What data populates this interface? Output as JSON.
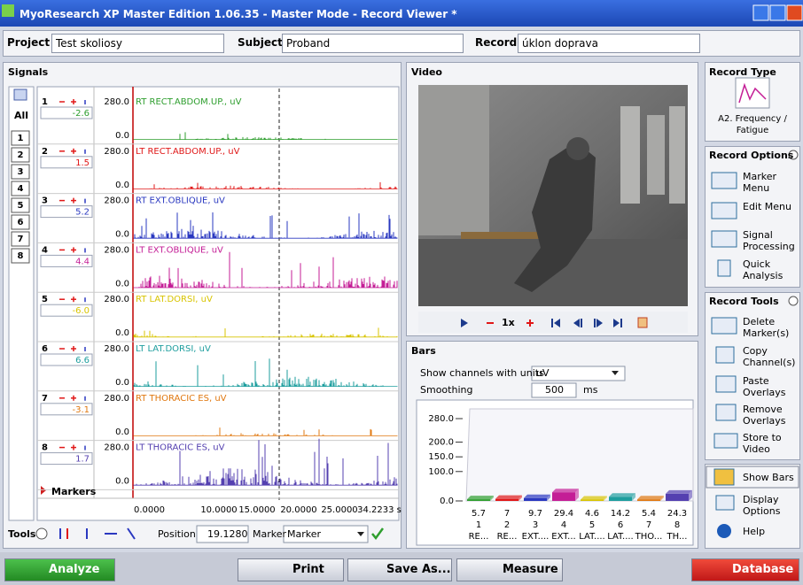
{
  "window": {
    "title": "MyoResearch XP Master Edition 1.06.35 - Master Mode - Record Viewer *"
  },
  "header": {
    "project_label": "Project",
    "project": "Test skoliosy",
    "subject_label": "Subject",
    "subject": "Proband",
    "record_label": "Record",
    "record": "úklon doprava"
  },
  "signals": {
    "title": "Signals",
    "all": "All",
    "channel_buttons": [
      "1",
      "2",
      "3",
      "4",
      "5",
      "6",
      "7",
      "8"
    ],
    "channels": [
      {
        "number": "1",
        "value": "-2.6",
        "max": "280.0",
        "min": "0.0",
        "label": "RT RECT.ABDOM.UP., uV",
        "color": "#2e9e2e"
      },
      {
        "number": "2",
        "value": "1.5",
        "max": "280.0",
        "min": "0.0",
        "label": "LT RECT.ABDOM.UP., uV",
        "color": "#e01818"
      },
      {
        "number": "3",
        "value": "5.2",
        "max": "280.0",
        "min": "0.0",
        "label": "RT EXT.OBLIQUE, uV",
        "color": "#2a38c0"
      },
      {
        "number": "4",
        "value": "4.4",
        "max": "280.0",
        "min": "0.0",
        "label": "LT EXT.OBLIQUE, uV",
        "color": "#c41e96"
      },
      {
        "number": "5",
        "value": "-6.0",
        "max": "280.0",
        "min": "0.0",
        "label": "RT LAT.DORSI, uV",
        "color": "#d8c400"
      },
      {
        "number": "6",
        "value": "6.6",
        "max": "280.0",
        "min": "0.0",
        "label": "LT LAT.DORSI, uV",
        "color": "#1e9e9e"
      },
      {
        "number": "7",
        "value": "-3.1",
        "max": "280.0",
        "min": "0.0",
        "label": "RT THORACIC ES, uV",
        "color": "#e07810"
      },
      {
        "number": "8",
        "value": "1.7",
        "max": "280.0",
        "min": "0.0",
        "label": "LT THORACIC ES, uV",
        "color": "#5440b0"
      }
    ],
    "markers": "Markers",
    "time_ticks": [
      "0.0000",
      "10.0000",
      "15.0000",
      "20.0000",
      "25.0000",
      "34.2233 s"
    ],
    "tools": {
      "label": "Tools",
      "position_label": "Position",
      "position": "19.1280",
      "marker_label": "Marker",
      "marker": "Marker"
    }
  },
  "video": {
    "title": "Video",
    "speed": "1x"
  },
  "bars": {
    "title": "Bars",
    "units_label": "Show channels with units",
    "units": "uV",
    "smoothing_label": "Smoothing",
    "smoothing": "500",
    "smoothing_unit": "ms",
    "chart": {
      "type": "bar",
      "categories": [
        "1",
        "2",
        "3",
        "4",
        "5",
        "6",
        "7",
        "8"
      ],
      "names": [
        "RE...",
        "RE...",
        "EXT....",
        "EXT...",
        "LAT....",
        "LAT....",
        "THO...",
        "TH..."
      ],
      "values": [
        5.7,
        7.0,
        9.7,
        29.4,
        4.6,
        14.2,
        5.4,
        24.3
      ],
      "colors": [
        "#2e9e2e",
        "#e01818",
        "#2a38c0",
        "#c41e96",
        "#d8c400",
        "#1e9e9e",
        "#e07810",
        "#5440b0"
      ],
      "ylim": [
        0,
        280
      ],
      "yticks": [
        {
          "value": 280,
          "label": "280.0"
        },
        {
          "value": 200,
          "label": "200.0"
        },
        {
          "value": 150,
          "label": "150.0"
        },
        {
          "value": 100,
          "label": "100.0"
        },
        {
          "value": 0,
          "label": "0.0"
        }
      ]
    }
  },
  "sidebar": {
    "record_type": {
      "title": "Record Type",
      "value": "A2. Frequency / Fatigue"
    },
    "record_options": {
      "title": "Record Options",
      "items": [
        "Marker Menu",
        "Edit Menu",
        "Signal Processing",
        "Quick Analysis"
      ]
    },
    "record_tools": {
      "title": "Record Tools",
      "items": [
        "Delete Marker(s)",
        "Copy Channel(s)",
        "Paste Overlays",
        "Remove Overlays",
        "Store to Video"
      ]
    },
    "show_bars": "Show Bars",
    "display_options": "Display Options",
    "help": "Help"
  },
  "toolbar": {
    "analyze": "Analyze",
    "print": "Print",
    "save_as": "Save As...",
    "measure": "Measure",
    "database": "Database"
  }
}
